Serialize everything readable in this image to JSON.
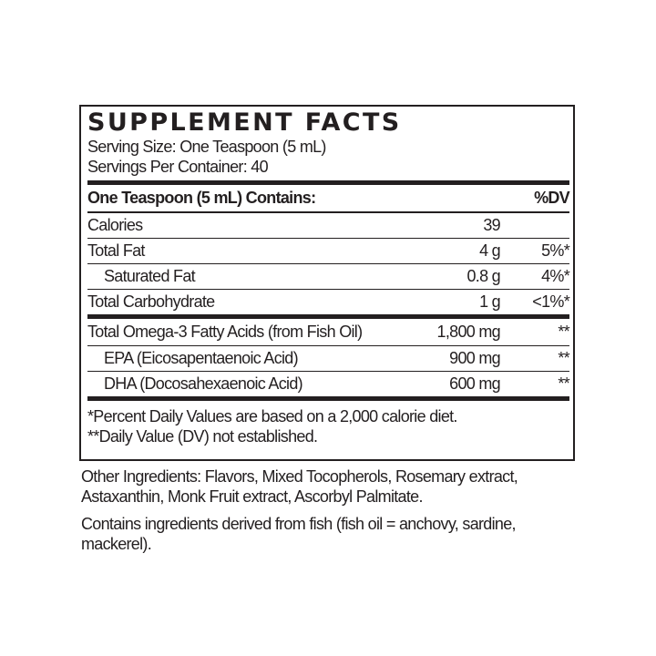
{
  "title": "SUPPLEMENT FACTS",
  "serving_size": "Serving Size: One Teaspoon (5 mL)",
  "servings_per_container": "Servings Per Container: 40",
  "header": {
    "label": "One Teaspoon (5 mL) Contains:",
    "dv": "%DV"
  },
  "rows_group1": [
    {
      "name": "Calories",
      "amount": "39",
      "dv": ""
    },
    {
      "name": "Total Fat",
      "amount": "4 g",
      "dv": "5%*"
    },
    {
      "name": "Saturated Fat",
      "amount": "0.8 g",
      "dv": "4%*"
    },
    {
      "name": "Total Carbohydrate",
      "amount": "1 g",
      "dv": "<1%*"
    }
  ],
  "rows_group2": [
    {
      "name": "Total Omega-3 Fatty Acids (from Fish Oil)",
      "amount": "1,800 mg",
      "dv": "**"
    },
    {
      "name": "EPA (Eicosapentaenoic Acid)",
      "amount": "900 mg",
      "dv": "**"
    },
    {
      "name": "DHA (Docosahexaenoic Acid)",
      "amount": "600 mg",
      "dv": "**"
    }
  ],
  "footnotes": [
    "*Percent Daily Values are based on a 2,000 calorie diet.",
    "**Daily Value (DV) not established."
  ],
  "other_ingredients": "Other Ingredients: Flavors, Mixed Tocopherols, Rosemary extract, Astaxanthin, Monk Fruit extract, Ascorbyl Palmitate.",
  "allergen": "Contains ingredients derived from fish (fish oil = anchovy, sardine, mackerel)."
}
